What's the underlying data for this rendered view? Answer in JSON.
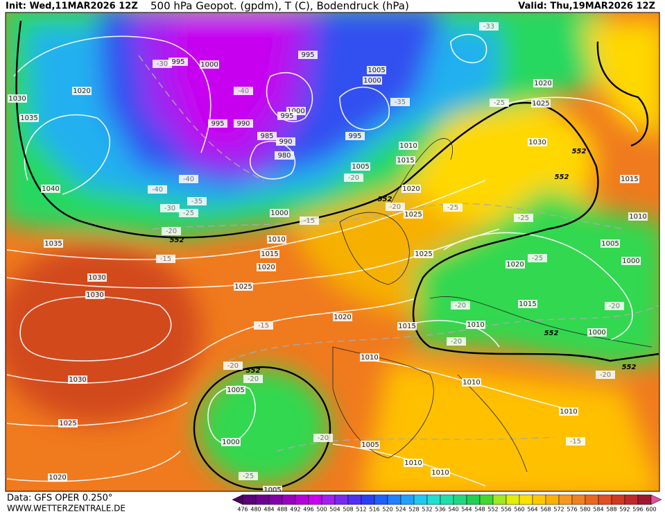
{
  "header": {
    "init": "Init: Wed,11MAR2026 12Z",
    "title": "500 hPa Geopot. (gpdm), T (C), Bodendruck (hPa)",
    "valid": "Valid: Thu,19MAR2026 12Z"
  },
  "footer": {
    "data": "Data: GFS OPER 0.250°",
    "site": "WWW.WETTERZENTRALE.DE"
  },
  "colorbar": {
    "labels": [
      476,
      480,
      484,
      488,
      492,
      496,
      500,
      504,
      508,
      512,
      516,
      520,
      524,
      528,
      532,
      536,
      540,
      544,
      548,
      552,
      556,
      560,
      564,
      568,
      572,
      576,
      580,
      584,
      588,
      592,
      596,
      600
    ],
    "colors": [
      "#4a0060",
      "#5a0078",
      "#6e0090",
      "#8200a8",
      "#9a00c0",
      "#b400d8",
      "#c800f0",
      "#a020f0",
      "#7a28f0",
      "#5030f0",
      "#2840f0",
      "#1e60f8",
      "#2080ff",
      "#20a0ff",
      "#20c8f0",
      "#20e0d0",
      "#20e0a8",
      "#20d880",
      "#20d050",
      "#40d830",
      "#a0e820",
      "#e0f000",
      "#ffe000",
      "#ffc800",
      "#ffb000",
      "#f89820",
      "#f08020",
      "#e86820",
      "#e05020",
      "#d03820",
      "#c02828",
      "#a01830",
      "#e050a0"
    ]
  },
  "map": {
    "pressure_labels": [
      "1030",
      "1035",
      "1040",
      "1020",
      "995",
      "1000",
      "995",
      "1005",
      "1000",
      "1000",
      "995",
      "990",
      "995",
      "985",
      "990",
      "980",
      "995",
      "1005",
      "1010",
      "1015",
      "1020",
      "1025",
      "1025",
      "1030",
      "1025",
      "1020",
      "1015",
      "1010",
      "1005",
      "1000",
      "1020",
      "1015",
      "1010",
      "1000",
      "1015",
      "1020",
      "1010",
      "1010",
      "1010",
      "1005",
      "1010",
      "1010",
      "1005",
      "1000",
      "1005",
      "1030",
      "1030",
      "1035",
      "1030",
      "1025",
      "1020",
      "1025",
      "1020",
      "1015",
      "1010",
      "1000"
    ],
    "temperature_labels": [
      "-30",
      "-40",
      "-35",
      "-25",
      "-20",
      "-40",
      "-40",
      "-30",
      "-35",
      "-25",
      "-20",
      "-15",
      "-15",
      "-20",
      "-25",
      "-25",
      "-25",
      "-20",
      "-20",
      "-20",
      "-20",
      "-15",
      "-20",
      "-20",
      "-20",
      "-15",
      "-25",
      "-33"
    ],
    "height_labels": [
      "552",
      "552",
      "552",
      "552",
      "552",
      "552",
      "552"
    ]
  }
}
